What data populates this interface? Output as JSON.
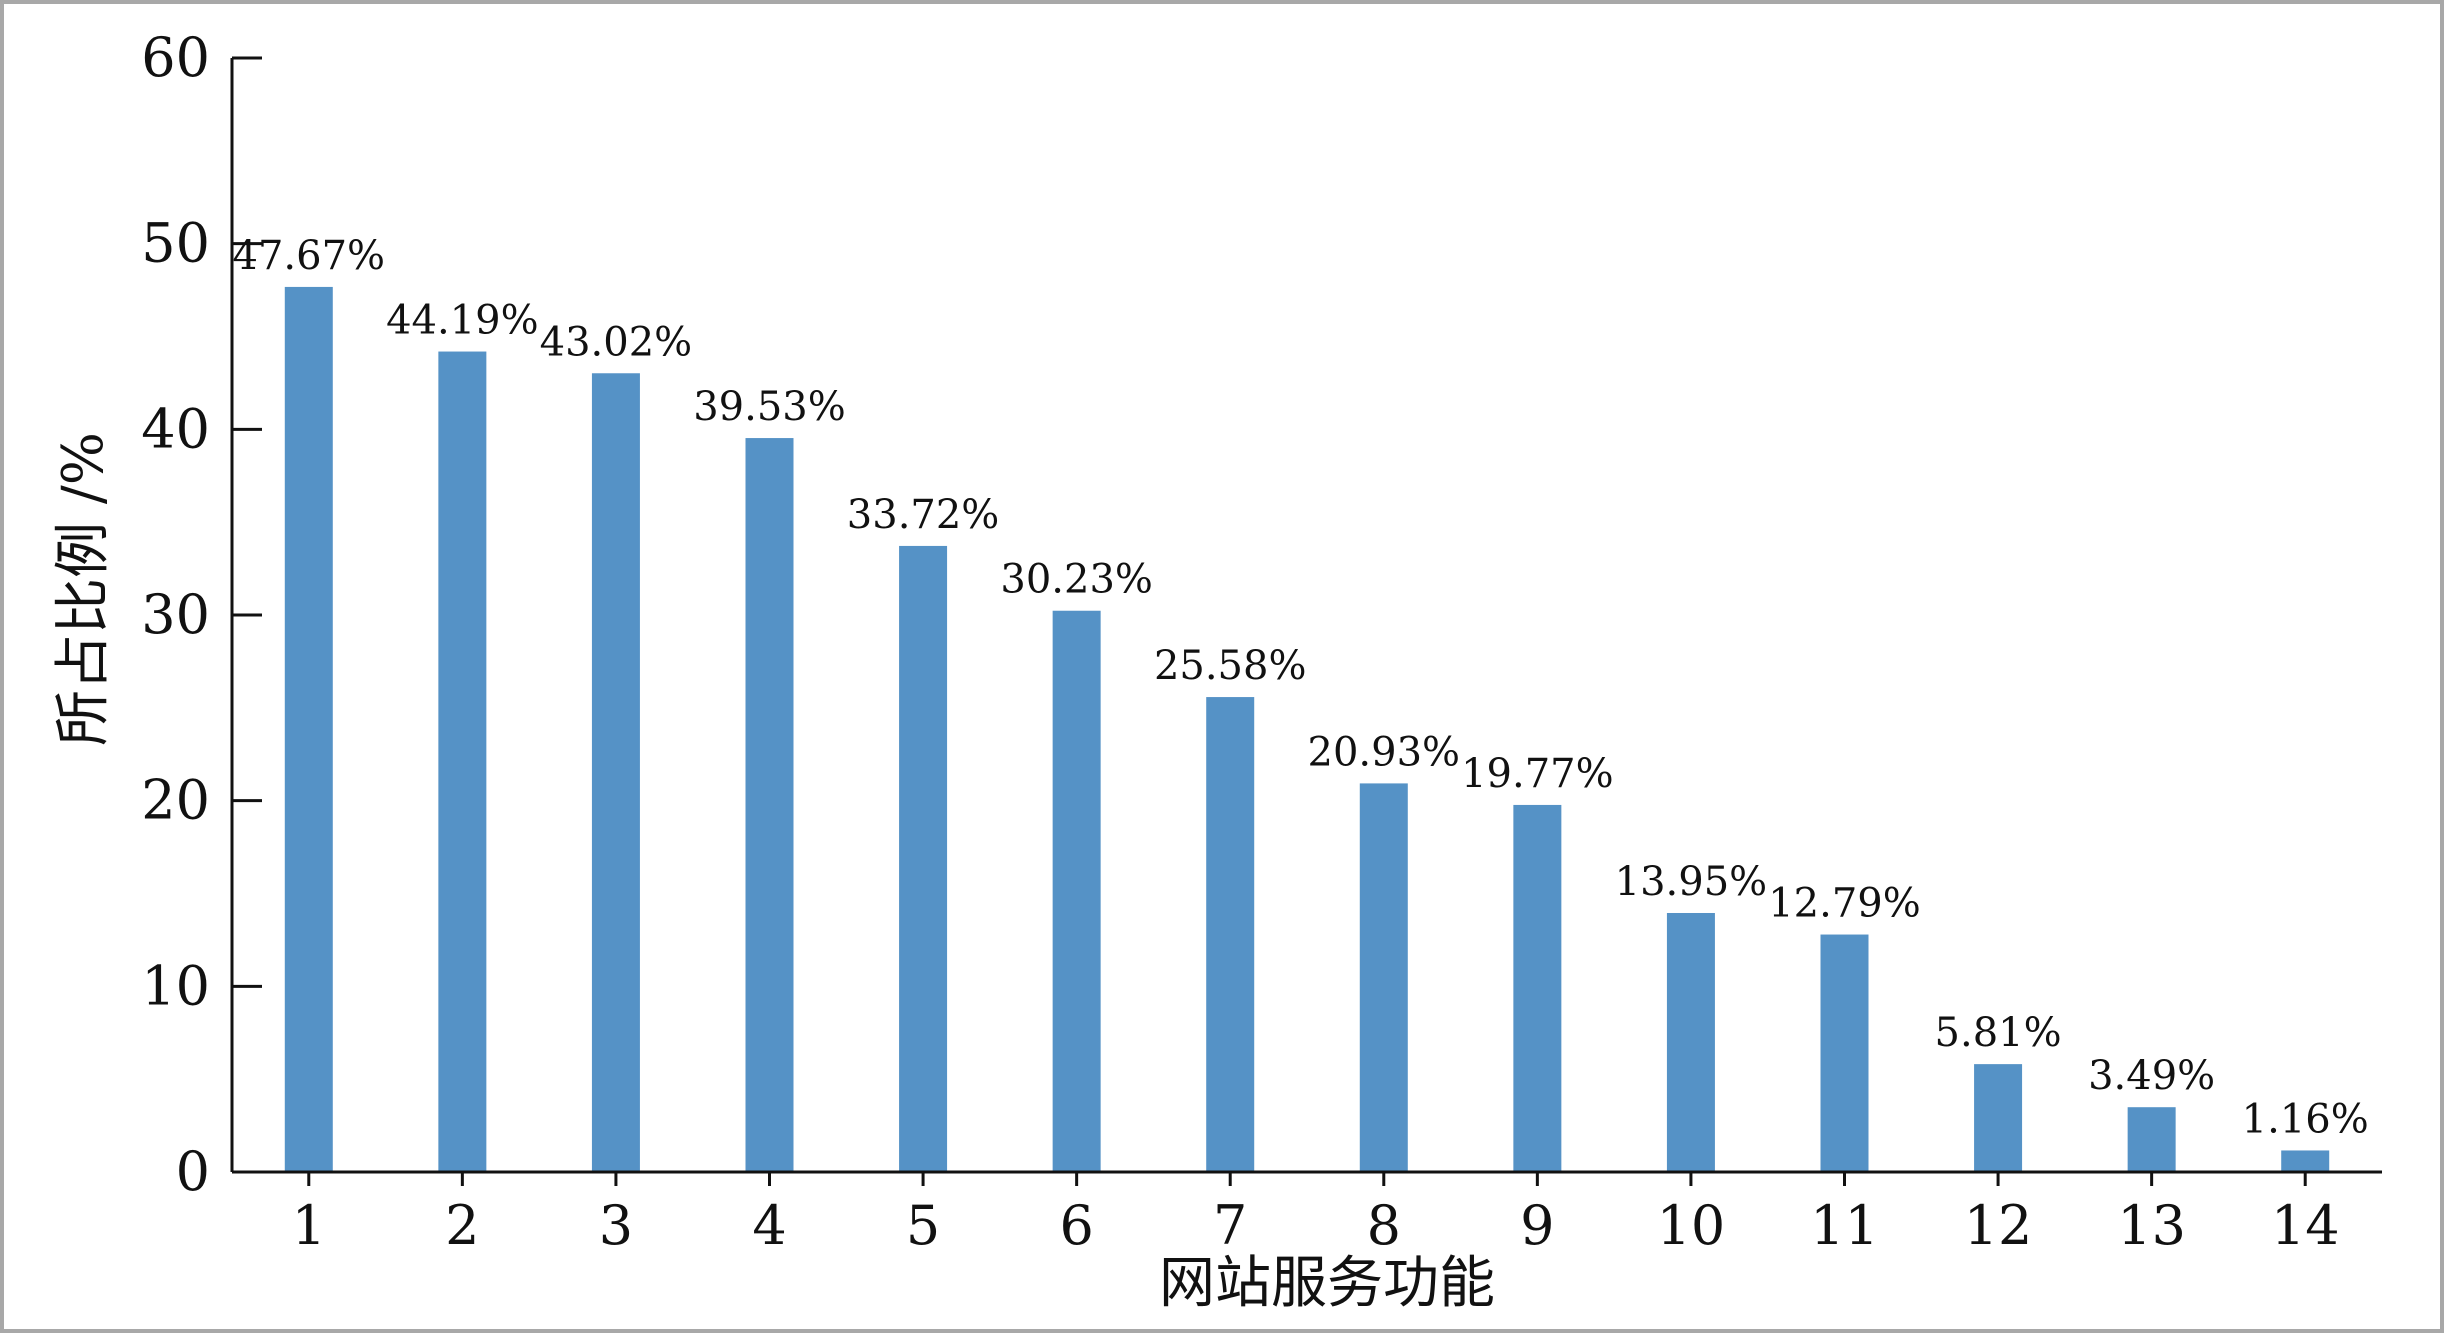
{
  "chart_data": {
    "type": "bar",
    "title": "",
    "xlabel": "网站服务功能",
    "ylabel": "所占比例 /%",
    "categories": [
      "1",
      "2",
      "3",
      "4",
      "5",
      "6",
      "7",
      "8",
      "9",
      "10",
      "11",
      "12",
      "13",
      "14"
    ],
    "values": [
      47.67,
      44.19,
      43.02,
      39.53,
      33.72,
      30.23,
      25.58,
      20.93,
      19.77,
      13.95,
      12.79,
      5.81,
      3.49,
      1.16
    ],
    "data_labels": [
      "47.67%",
      "44.19%",
      "43.02%",
      "39.53%",
      "33.72%",
      "30.23%",
      "25.58%",
      "20.93%",
      "19.77%",
      "13.95%",
      "12.79%",
      "5.81%",
      "3.49%",
      "1.16%"
    ],
    "ylim": [
      0,
      60
    ],
    "yticks": [
      "0",
      "10",
      "20",
      "30",
      "40",
      "50",
      "60"
    ],
    "grid": false,
    "legend": "none",
    "bar_color": "#5592c6"
  }
}
